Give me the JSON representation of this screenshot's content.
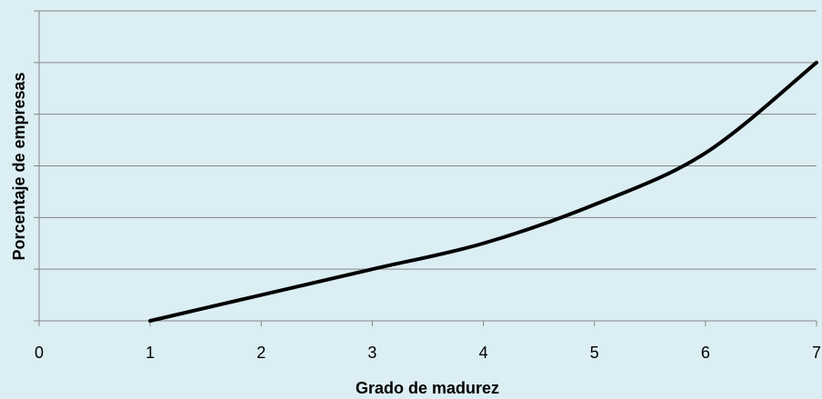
{
  "chart_data": {
    "type": "line",
    "xlabel": "Grado de madurez",
    "ylabel": "Porcentaje de empresas",
    "x": [
      1,
      2,
      3,
      4,
      5,
      6,
      7
    ],
    "series": [
      {
        "color": "#000000",
        "values": [
          0,
          0.5,
          1,
          1.5,
          2.25,
          3.25,
          5
        ]
      }
    ],
    "xlim": [
      0,
      7
    ],
    "xticks": [
      0,
      1,
      2,
      3,
      4,
      5,
      6,
      7
    ],
    "ylim": [
      0,
      6
    ],
    "yticks": [
      0,
      1,
      2,
      3,
      4,
      5,
      6
    ],
    "y_tick_labels": false,
    "grid": true
  }
}
